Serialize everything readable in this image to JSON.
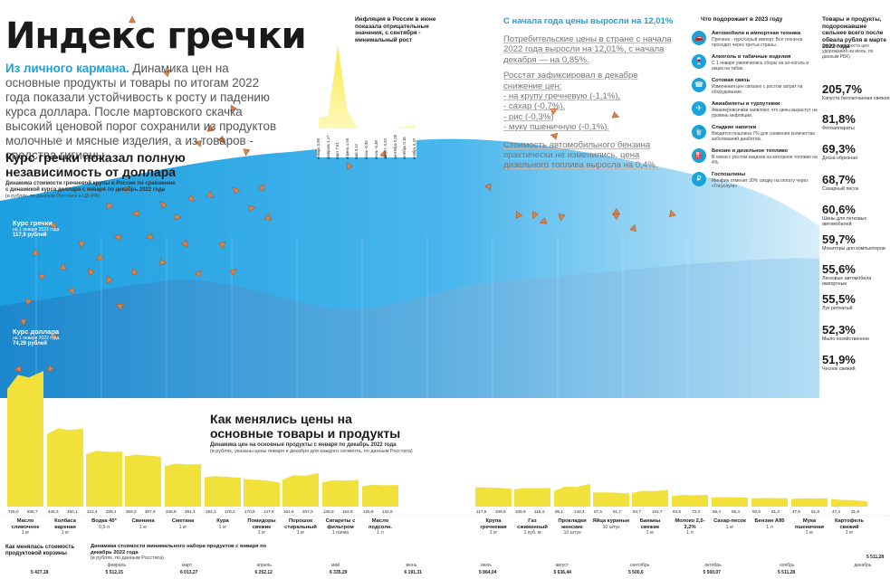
{
  "title": "Индекс гречки",
  "intro": {
    "lead": "Из личного кармана.",
    "text": " Динамика цен на основные продукты и товары по итогам 2022 года показали устойчивость к росту и падению курса доллара. После мартовского скачка высокий ценовой порог сохранили из продуктов молочные и мясные изделия, а из товаров - средства гигиены."
  },
  "kurs": {
    "heading": "Курс гречки показал полную независимость от доллара",
    "desc": "Динамика стоимости гречневой крупы в России по сравнению с динамикой курса доллара с января по декабрь 2022 года",
    "desc_unit": "(в рублях, по данным Росстата и ЦБ РФ)",
    "grecha_title": "Курс гречки",
    "grecha_sub": "на 1 января 2022 года",
    "grecha_val": "117,9 рублей",
    "usd_title": "Курс доллара",
    "usd_sub": "на 1 января 2022 года",
    "usd_val": "74,29 рублей"
  },
  "inflation": {
    "title": "Инфляция в России в июне показала отрицательные значения, с сентября - минимальный рост",
    "months": [
      "январь",
      "февраль",
      "март",
      "апрель",
      "май",
      "июнь",
      "июль",
      "август",
      "сентябрь",
      "октябрь",
      "ноябрь"
    ],
    "values": [
      "0,99",
      "1,17",
      "7,61",
      "1,56",
      "0,12",
      "-0,35",
      "-0,39",
      "-0,52",
      "0,05",
      "0,18",
      "0,37"
    ]
  },
  "since_year": {
    "heading": "С начала года цены выросли на 12,01%",
    "p1": "Потребительские цены в стране с начала 2022 года выросли на 12,01%, с начала декабря — на 0,85%.",
    "p2": "Росстат зафиксировал в декабре снижение цен:",
    "items": [
      "- на крупу гречневую (-1,1%),",
      "- сахар (-0,7%),",
      "- рис (-0,3%)",
      "- муку пшеничную (-0,1%)."
    ],
    "p3": "Стоимость автомобильного бензина практически не изменились, цена дизельного топлива выросла на 0,4%."
  },
  "reasons_title": "Что подорожает в 2023 году",
  "reasons": [
    {
      "title": "Автомобили и импортная техника",
      "desc": "Причина - курс/серый импорт. Все техни-ка проходит через третьи страны."
    },
    {
      "title": "Алкоголь и табачные изделия",
      "desc": "С 1 января увеличились сборы на ал-коголь и акциз на табак."
    },
    {
      "title": "Сотовая связь",
      "desc": "Изменения цен связано с ростом затрат на оборудование."
    },
    {
      "title": "Авиабилеты и турпутевки",
      "desc": "Авиаперевозчики заявляют, что цены вырастут на уровень инфляции."
    },
    {
      "title": "Сладкие напитки",
      "desc": "Вводится пошлина 7% для снижения количества заболеваний диабетом."
    },
    {
      "title": "Бензин и дизельное топливо",
      "desc": "В связи с ростом акцизов на моторное топливо на 4%."
    },
    {
      "title": "Госпошлины",
      "desc": "Минфин отменит 30% скидку на оплату через «Госуслуги»"
    }
  ],
  "topcat": {
    "title": "Товары и продукты, подорожавшие сильнее всего после обвала рубля в марте 2022 года",
    "sub": "(данные прироста цен удорожания на июль, по данным РБК)",
    "items": [
      {
        "pct": "205,7%",
        "label": "Капуста белокочанная свежая"
      },
      {
        "pct": "81,8%",
        "label": "Фотоаппараты"
      },
      {
        "pct": "69,3%",
        "label": "Доска обрезная"
      },
      {
        "pct": "68,7%",
        "label": "Сахарный песок"
      },
      {
        "pct": "60,6%",
        "label": "Шины для легковых автомобилей"
      },
      {
        "pct": "59,7%",
        "label": "Мониторы для компьютеров"
      },
      {
        "pct": "55,6%",
        "label": "Легковые автомобили импортные"
      },
      {
        "pct": "55,5%",
        "label": "Лук репчатый"
      },
      {
        "pct": "52,3%",
        "label": "Мыло хозяйственное"
      },
      {
        "pct": "51,9%",
        "label": "Чеснок свежий"
      }
    ]
  },
  "products": {
    "heading": "Как менялись цены на основные товары и продукты",
    "desc": "Динамика цен на основные продукты с января по декабрь 2022 года",
    "desc_unit": "(в рублях, указаны цены января и декабря для каждого сегмента, по данным Росстата)"
  },
  "chart_data": [
    {
      "type": "bar",
      "title": "Как менялись цены на основные товары и продукты",
      "series": [
        {
          "name": "Масло сливочное",
          "unit": "1 кг",
          "jan": "725,0",
          "dec": "835,7"
        },
        {
          "name": "Колбаса вареная",
          "unit": "1 кг",
          "jan": "446,3",
          "dec": "480,1"
        },
        {
          "name": "Водка 40°",
          "unit": "0,5 л",
          "jan": "322,4",
          "dec": "339,1"
        },
        {
          "name": "Свинина",
          "unit": "1 кг",
          "jan": "309,2",
          "dec": "307,9"
        },
        {
          "name": "Сметана",
          "unit": "1 кг",
          "jan": "248,8",
          "dec": "261,3"
        },
        {
          "name": "Кура",
          "unit": "1 кг",
          "jan": "182,1",
          "dec": "178,2"
        },
        {
          "name": "Помидоры свежие",
          "unit": "1 кг",
          "jan": "170,8",
          "dec": "147,9"
        },
        {
          "name": "Порошок стиральный",
          "unit": "1 кг",
          "jan": "164,6",
          "dec": "207,3"
        },
        {
          "name": "Сигареты с фильтром",
          "unit": "1 пачка",
          "jan": "148,9",
          "dec": "164,8"
        },
        {
          "name": "Масло подсолн.",
          "unit": "1 л",
          "jan": "125,8",
          "dec": "132,9"
        },
        {
          "name": "Крупа гречневая",
          "unit": "1 кг",
          "jan": "117,9",
          "dec": "109,6"
        },
        {
          "name": "Газ сжиженный",
          "unit": "1 куб. м",
          "jan": "105,9",
          "dec": "115,4"
        },
        {
          "name": "Прокладки женские",
          "unit": "10 штук",
          "jan": "96,1",
          "dec": "140,4"
        },
        {
          "name": "Яйца куриные",
          "unit": "10 штук",
          "jan": "87,5",
          "dec": "81,7"
        },
        {
          "name": "Бананы свежие",
          "unit": "1 кг",
          "jan": "84,7",
          "dec": "102,7"
        },
        {
          "name": "Молоко 2,5-3,2%",
          "unit": "1 л",
          "jan": "64,9",
          "dec": "73,3"
        },
        {
          "name": "Сахар-песок",
          "unit": "1 кг",
          "jan": "56,4",
          "dec": "55,4"
        },
        {
          "name": "Бензин А95",
          "unit": "1 л",
          "jan": "50,6",
          "dec": "51,3"
        },
        {
          "name": "Мука пшеничная",
          "unit": "1 кг",
          "jan": "47,5",
          "dec": "51,8"
        },
        {
          "name": "Картофель свежий",
          "unit": "1 кг",
          "jan": "47,4",
          "dec": "31,9"
        }
      ]
    },
    {
      "type": "line",
      "title": "Динамика стоимости минимального набора продуктов с января по декабрь 2022 года",
      "unit": "(в рублях, по данным Росстата)",
      "heading_left": "Как менялась стоимость продуктовой корзины",
      "x": [
        "январь",
        "февраль",
        "март",
        "апрель",
        "май",
        "июнь",
        "июль",
        "август",
        "сентябрь",
        "октябрь",
        "ноябрь",
        "декабрь"
      ],
      "values": [
        "5 427,18",
        "5 512,15",
        "6 013,27",
        "6 252,12",
        "6 335,29",
        "6 191,31",
        "5 864,04",
        "5 636,44",
        "5 500,6",
        "5 500,07",
        "5 511,28",
        "5 511,28"
      ]
    }
  ],
  "colors": {
    "accent": "#1aa3d9",
    "yellow": "#f2e03b",
    "orange": "#d9824a"
  }
}
